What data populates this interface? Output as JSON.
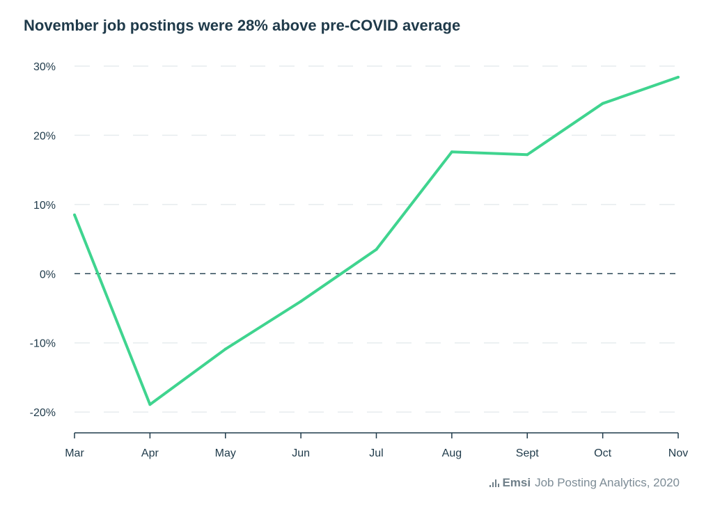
{
  "chart_data": {
    "type": "line",
    "title": "November job postings were 28% above pre-COVID average",
    "xlabel": "",
    "ylabel": "",
    "categories": [
      "Mar",
      "Apr",
      "May",
      "Jun",
      "Jul",
      "Aug",
      "Sept",
      "Oct",
      "Nov"
    ],
    "values": [
      8.5,
      -18.9,
      -10.9,
      -4.0,
      3.5,
      17.6,
      17.2,
      24.6,
      28.4
    ],
    "ylim": [
      -23,
      30
    ],
    "yticks": [
      30,
      20,
      10,
      0,
      -10,
      -20
    ],
    "ytick_labels": [
      "30%",
      "20%",
      "10%",
      "0%",
      "-10%",
      "-20%"
    ],
    "grid": true,
    "reference_line": 0,
    "colors": {
      "line": "#3fd48f",
      "text": "#1f3a4a",
      "grid": "#e6ecee",
      "zero_line": "#2e4a58"
    }
  },
  "source": {
    "logo_text": "Emsi",
    "text": "Job Posting Analytics, 2020"
  }
}
